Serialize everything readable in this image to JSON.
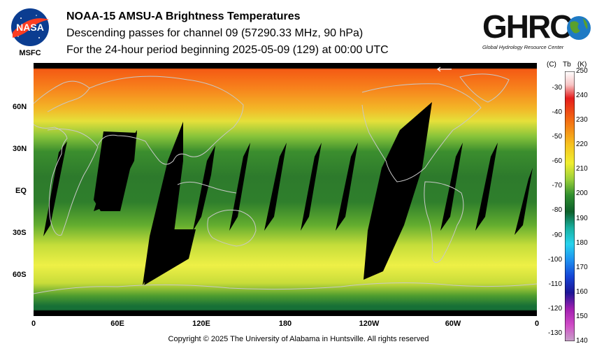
{
  "header": {
    "title": "NOAA-15 AMSU-A Brightness Temperatures",
    "subtitle": "Descending passes for channel 09 (57290.33 MHz, 90 hPa)",
    "period": "For the 24-hour period beginning 2025-05-09 (129) at 00:00 UTC"
  },
  "logos": {
    "nasa_text": "NASA",
    "msfc_text": "MSFC",
    "ghrc_text": "GHRC",
    "ghrc_subtext": "Global Hydrology Resource Center"
  },
  "map": {
    "lat_labels": [
      "60N",
      "30N",
      "EQ",
      "30S",
      "60S"
    ],
    "lon_labels": [
      "0",
      "60E",
      "120E",
      "180",
      "120W",
      "60W",
      "0"
    ],
    "swath_gap_color": "#000000",
    "coastline_color": "#c8c8c8"
  },
  "colorbar": {
    "unit_c": "(C)",
    "unit_tb": "Tb",
    "unit_k": "(K)",
    "celsius_ticks": [
      "-30",
      "-40",
      "-50",
      "-60",
      "-70",
      "-80",
      "-90",
      "-100",
      "-110",
      "-120",
      "-130"
    ],
    "kelvin_ticks": [
      "250",
      "240",
      "230",
      "220",
      "210",
      "200",
      "190",
      "180",
      "170",
      "160",
      "150",
      "140"
    ],
    "range_k": [
      140,
      250
    ]
  },
  "footer": {
    "copyright": "Copyright © 2025 The University of Alabama in Huntsville.  All rights reserved"
  }
}
